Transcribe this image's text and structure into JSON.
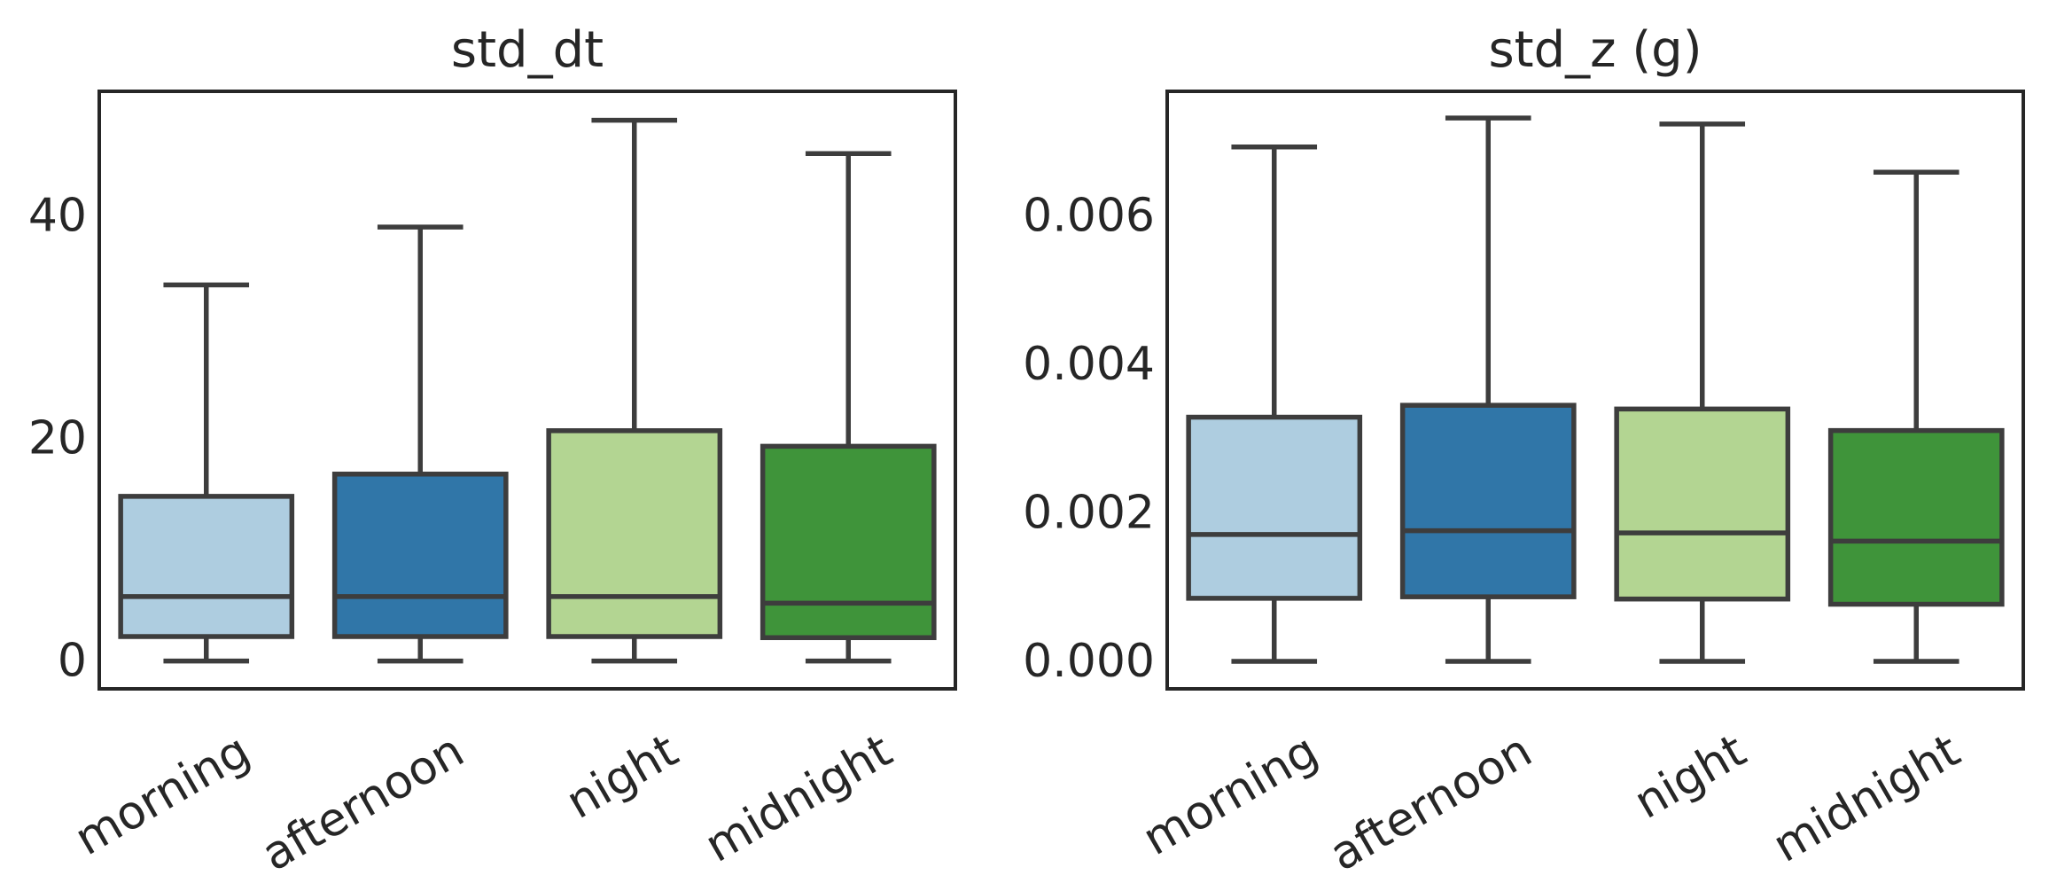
{
  "colors": {
    "morning": "#aecde0",
    "afternoon": "#3076a8",
    "night": "#b3d592",
    "midnight": "#3f943a",
    "line": "#3d3d3d",
    "frame": "#262626"
  },
  "chart_data": [
    {
      "type": "box",
      "title": "std_dt",
      "xlabel": "",
      "ylabel": "",
      "categories": [
        "morning",
        "afternoon",
        "night",
        "midnight"
      ],
      "ylim": [
        -2.5,
        51.2
      ],
      "yticks": [
        0,
        20,
        40
      ],
      "ytick_labels": [
        "0",
        "20",
        "40"
      ],
      "boxes": [
        {
          "category": "morning",
          "min": 0,
          "q1": 2.2,
          "median": 5.8,
          "q3": 14.8,
          "max": 33.8
        },
        {
          "category": "afternoon",
          "min": 0,
          "q1": 2.2,
          "median": 5.8,
          "q3": 16.8,
          "max": 39.0
        },
        {
          "category": "night",
          "min": 0,
          "q1": 2.2,
          "median": 5.8,
          "q3": 20.7,
          "max": 48.6
        },
        {
          "category": "midnight",
          "min": 0,
          "q1": 2.1,
          "median": 5.2,
          "q3": 19.3,
          "max": 45.6
        }
      ]
    },
    {
      "type": "box",
      "title": "std_z (g)",
      "xlabel": "",
      "ylabel": "",
      "categories": [
        "morning",
        "afternoon",
        "night",
        "midnight"
      ],
      "ylim": [
        -0.00037,
        0.00768
      ],
      "yticks": [
        0,
        0.002,
        0.004,
        0.006
      ],
      "ytick_labels": [
        "0.000",
        "0.002",
        "0.004",
        "0.006"
      ],
      "boxes": [
        {
          "category": "morning",
          "min": 0,
          "q1": 0.00085,
          "median": 0.00171,
          "q3": 0.00329,
          "max": 0.00693
        },
        {
          "category": "afternoon",
          "min": 0,
          "q1": 0.00087,
          "median": 0.00176,
          "q3": 0.00345,
          "max": 0.00732
        },
        {
          "category": "night",
          "min": 0,
          "q1": 0.00084,
          "median": 0.00173,
          "q3": 0.0034,
          "max": 0.00724
        },
        {
          "category": "midnight",
          "min": 0,
          "q1": 0.00077,
          "median": 0.00162,
          "q3": 0.00311,
          "max": 0.00659
        }
      ]
    }
  ]
}
